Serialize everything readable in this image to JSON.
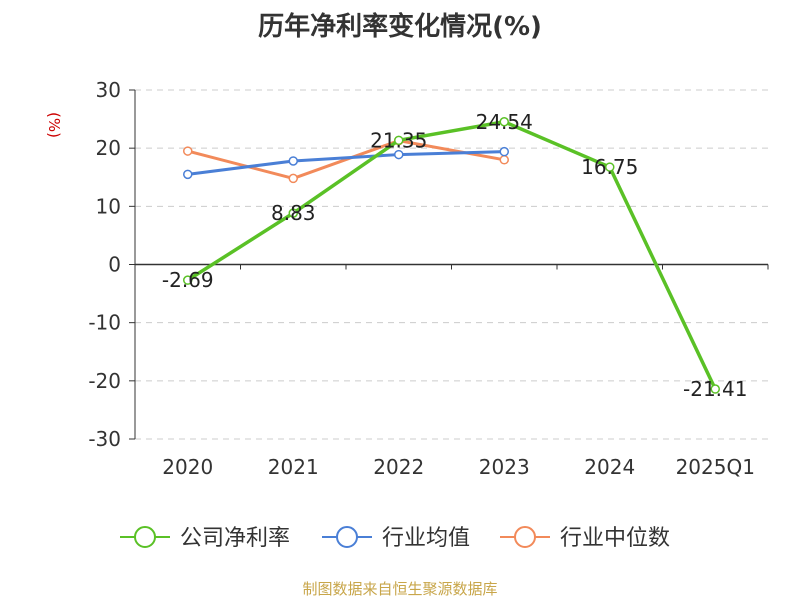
{
  "title": "历年净利率变化情况(%)",
  "y_unit": "(%)",
  "source": "制图数据来自恒生聚源数据库",
  "chart_data": {
    "type": "line",
    "title": "历年净利率变化情况(%)",
    "ylabel": "(%)",
    "xlabel": "",
    "categories": [
      "2020",
      "2021",
      "2022",
      "2023",
      "2024",
      "2025Q1"
    ],
    "ylim": [
      -30,
      30
    ],
    "yticks": [
      30,
      20,
      10,
      0,
      -10,
      -20,
      -30
    ],
    "grid": true,
    "legend_position": "bottom",
    "series": [
      {
        "name": "公司净利率",
        "color": "#5ac126",
        "values": [
          -2.69,
          8.83,
          21.35,
          24.54,
          16.75,
          -21.41
        ],
        "labels": [
          "-2.69",
          "8.83",
          "21.35",
          "24.54",
          "16.75",
          "-21.41"
        ]
      },
      {
        "name": "行业均值",
        "color": "#4a7fd6",
        "values": [
          15.5,
          17.8,
          18.9,
          19.4,
          null,
          null
        ]
      },
      {
        "name": "行业中位数",
        "color": "#f28a5a",
        "values": [
          19.5,
          14.8,
          21.3,
          18.0,
          null,
          null
        ]
      }
    ]
  }
}
